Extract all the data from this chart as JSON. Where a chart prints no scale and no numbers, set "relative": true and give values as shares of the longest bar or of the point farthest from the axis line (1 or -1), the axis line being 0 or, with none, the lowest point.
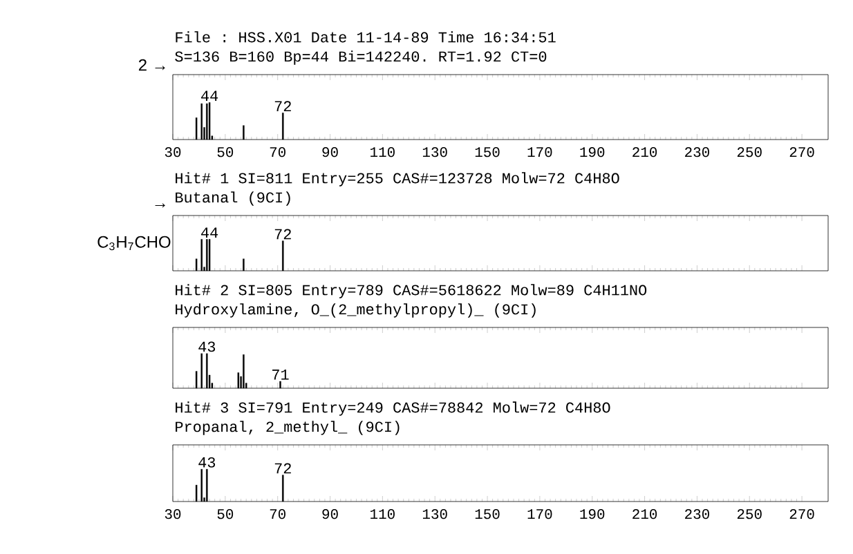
{
  "chart_data": [
    {
      "type": "bar",
      "title": "File : HSS.X01 Date 11-14-89 Time 16:34:51",
      "subtitle": "S=136 B=160 Bp=44 Bi=142240. RT=1.92 CT=0",
      "relative": true,
      "color": "#000000",
      "x": [
        39,
        41,
        42,
        43,
        44,
        45,
        57,
        72
      ],
      "values": [
        0.59,
        0.97,
        0.33,
        0.97,
        1,
        0.1,
        0.38,
        0.72
      ],
      "xlim": [
        30,
        280
      ],
      "xticks": [
        30,
        50,
        70,
        90,
        110,
        130,
        150,
        170,
        190,
        210,
        230,
        250,
        270
      ],
      "tick_labels": "x",
      "annotations": [
        "2 →",
        {
          "text": "44",
          "x": 44,
          "y": 1
        },
        {
          "text": "72",
          "x": 72,
          "y": 0.72
        }
      ]
    },
    {
      "type": "bar",
      "title": "Hit# 1 SI=811 Entry=255 CAS#=123728 Molw=72 C4H8O",
      "subtitle": "Butanal (9CI)",
      "relative": true,
      "color": "#000000",
      "x": [
        39,
        41,
        42,
        43,
        44,
        57,
        72
      ],
      "values": [
        0.38,
        1,
        0.12,
        1,
        1,
        0.38,
        0.95
      ],
      "xlim": [
        30,
        280
      ],
      "xticks": [
        30,
        50,
        70,
        90,
        110,
        130,
        150,
        170,
        190,
        210,
        230,
        250,
        270
      ],
      "tick_labels": false,
      "annotations": [
        "→",
        "C$_{3}$H$_{7}$CHO",
        {
          "text": "44",
          "x": 44,
          "y": 1
        },
        {
          "text": "72",
          "x": 72,
          "y": 0.95
        }
      ]
    },
    {
      "type": "bar",
      "title": "Hit# 2 SI=805 Entry=789 CAS#=5618622 Molw=89 C4H11NO",
      "subtitle": "Hydroxylamine, O_(2_methylpropyl)_ (9CI)",
      "relative": true,
      "color": "#000000",
      "x": [
        39,
        41,
        43,
        44,
        45,
        55,
        56,
        57,
        58,
        71
      ],
      "values": [
        0.49,
        1,
        1,
        0.38,
        0.15,
        0.45,
        0.34,
        0.97,
        0.15,
        0.2
      ],
      "xlim": [
        30,
        280
      ],
      "xticks": [
        30,
        50,
        70,
        90,
        110,
        130,
        150,
        170,
        190,
        210,
        230,
        250,
        270
      ],
      "tick_labels": false,
      "annotations": [
        {
          "text": "43",
          "x": 43,
          "y": 1
        },
        {
          "text": "71",
          "x": 71,
          "y": 0.2
        }
      ]
    },
    {
      "type": "bar",
      "title": "Hit# 3 SI=791 Entry=249 CAS#=78842 Molw=72 C4H8O",
      "subtitle": "Propanal, 2_methyl_ (9CI)",
      "relative": true,
      "color": "#000000",
      "x": [
        39,
        41,
        42,
        43,
        72
      ],
      "values": [
        0.51,
        1,
        0.12,
        1,
        0.82
      ],
      "xlim": [
        30,
        280
      ],
      "xticks": [
        30,
        50,
        70,
        90,
        110,
        130,
        150,
        170,
        190,
        210,
        230,
        250,
        270
      ],
      "tick_labels": "x",
      "annotations": [
        {
          "text": "43",
          "x": 43,
          "y": 1
        },
        {
          "text": "72",
          "x": 72,
          "y": 0.82
        }
      ]
    }
  ]
}
